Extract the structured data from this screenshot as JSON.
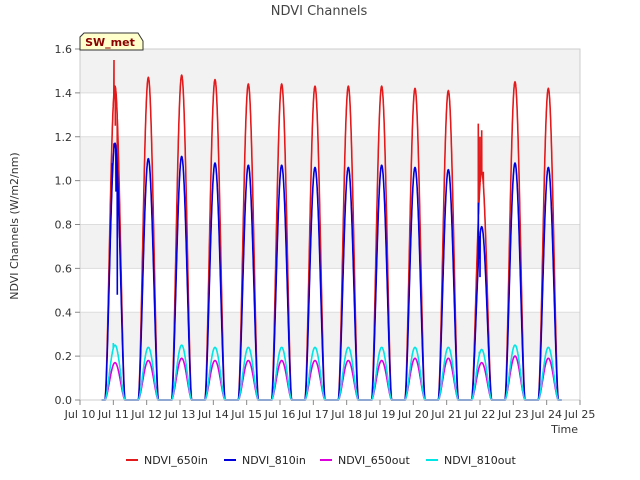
{
  "chart_data": {
    "type": "line",
    "title": "NDVI Channels",
    "xlabel": "Time",
    "ylabel": "NDVI Channels (W/m2/nm)",
    "badge": "SW_met",
    "xlim": [
      10,
      25
    ],
    "ylim": [
      0,
      1.6
    ],
    "xticks": [
      {
        "value": 10,
        "label": "Jul 10"
      },
      {
        "value": 11,
        "label": "Jul 11"
      },
      {
        "value": 12,
        "label": "Jul 12"
      },
      {
        "value": 13,
        "label": "Jul 13"
      },
      {
        "value": 14,
        "label": "Jul 14"
      },
      {
        "value": 15,
        "label": "Jul 15"
      },
      {
        "value": 16,
        "label": "Jul 16"
      },
      {
        "value": 17,
        "label": "Jul 17"
      },
      {
        "value": 18,
        "label": "Jul 18"
      },
      {
        "value": 19,
        "label": "Jul 19"
      },
      {
        "value": 20,
        "label": "Jul 20"
      },
      {
        "value": 21,
        "label": "Jul 21"
      },
      {
        "value": 22,
        "label": "Jul 22"
      },
      {
        "value": 23,
        "label": "Jul 23"
      },
      {
        "value": 24,
        "label": "Jul 24"
      },
      {
        "value": 25,
        "label": "Jul 25"
      }
    ],
    "yticks": [
      {
        "value": 0.0,
        "label": "0.0"
      },
      {
        "value": 0.2,
        "label": "0.2"
      },
      {
        "value": 0.4,
        "label": "0.4"
      },
      {
        "value": 0.6,
        "label": "0.6"
      },
      {
        "value": 0.8,
        "label": "0.8"
      },
      {
        "value": 1.0,
        "label": "1.0"
      },
      {
        "value": 1.2,
        "label": "1.2"
      },
      {
        "value": 1.4,
        "label": "1.4"
      },
      {
        "value": 1.6,
        "label": "1.6"
      }
    ],
    "day_centers": [
      11.05,
      12.05,
      13.05,
      14.05,
      15.05,
      16.05,
      17.05,
      18.05,
      19.05,
      20.05,
      21.05,
      22.05,
      23.05,
      24.05
    ],
    "day_halfwidth": 0.3,
    "series": [
      {
        "name": "NDVI_650in",
        "color": "#e31a1c",
        "peaks": [
          1.43,
          1.47,
          1.48,
          1.46,
          1.44,
          1.44,
          1.43,
          1.43,
          1.43,
          1.42,
          1.41,
          1.04,
          1.45,
          1.42
        ],
        "spikes": [
          [
            11.02,
            1.55
          ],
          [
            11.06,
            1.25
          ],
          [
            11.12,
            0.74
          ],
          [
            21.95,
            1.26
          ],
          [
            22.0,
            1.2
          ],
          [
            22.05,
            1.23
          ],
          [
            22.1,
            1.04
          ]
        ]
      },
      {
        "name": "NDVI_810in",
        "color": "#0000dd",
        "peaks": [
          1.17,
          1.1,
          1.11,
          1.08,
          1.07,
          1.07,
          1.06,
          1.06,
          1.07,
          1.06,
          1.05,
          0.79,
          1.08,
          1.06
        ],
        "spikes": [
          [
            10.97,
            1.08
          ],
          [
            11.02,
            1.17
          ],
          [
            11.08,
            0.95
          ],
          [
            11.12,
            0.48
          ],
          [
            21.95,
            0.9
          ],
          [
            22.0,
            0.56
          ],
          [
            22.05,
            0.79
          ]
        ]
      },
      {
        "name": "NDVI_650out",
        "color": "#dd00dd",
        "peaks": [
          0.17,
          0.18,
          0.19,
          0.18,
          0.18,
          0.18,
          0.18,
          0.18,
          0.18,
          0.19,
          0.19,
          0.17,
          0.2,
          0.19
        ],
        "spikes": []
      },
      {
        "name": "NDVI_810out",
        "color": "#00e5e5",
        "peaks": [
          0.25,
          0.24,
          0.25,
          0.24,
          0.24,
          0.24,
          0.24,
          0.24,
          0.24,
          0.24,
          0.24,
          0.23,
          0.25,
          0.24
        ],
        "spikes": [
          [
            11.0,
            0.26
          ],
          [
            21.98,
            0.22
          ]
        ]
      }
    ],
    "legend_position": "bottom"
  }
}
